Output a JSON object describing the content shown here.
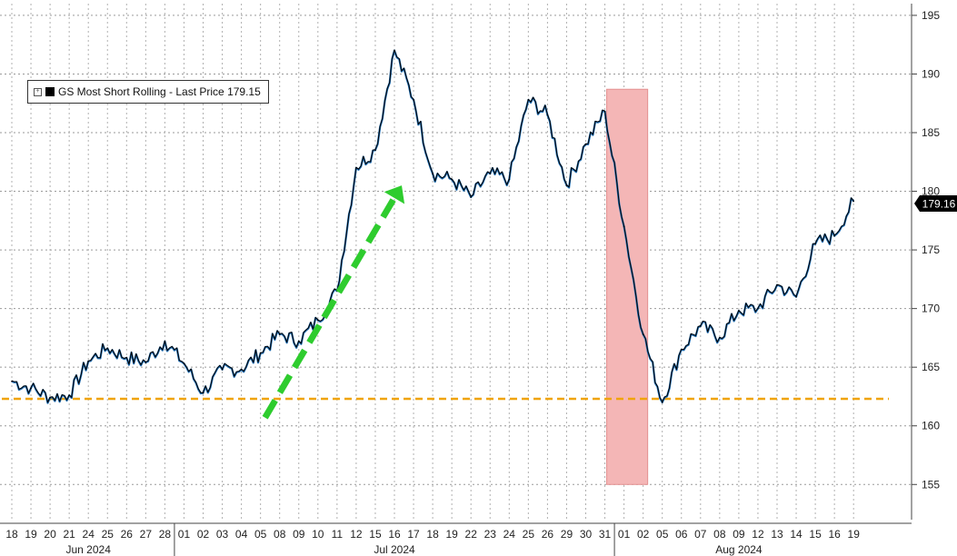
{
  "legend": {
    "series_label": "GS Most Short Rolling - Last Price 179.15"
  },
  "last_price_tag": "179.16",
  "chart_data": {
    "type": "line",
    "title": "",
    "xlabel": "",
    "ylabel": "",
    "ylim": [
      152,
      196
    ],
    "yticks": [
      155,
      160,
      165,
      170,
      175,
      180,
      185,
      190,
      195
    ],
    "grid": true,
    "legend_position": "top-left",
    "x": [
      "18",
      "19",
      "20",
      "21",
      "24",
      "25",
      "26",
      "27",
      "28",
      "01",
      "02",
      "03",
      "04",
      "05",
      "08",
      "09",
      "10",
      "11",
      "12",
      "15",
      "16",
      "17",
      "18",
      "19",
      "22",
      "23",
      "24",
      "25",
      "26",
      "29",
      "30",
      "31",
      "01",
      "02",
      "05",
      "06",
      "07",
      "08",
      "09",
      "12",
      "13",
      "14",
      "15",
      "16",
      "19"
    ],
    "months": [
      {
        "label": "Jun 2024",
        "start": 0,
        "end": 8
      },
      {
        "label": "Jul 2024",
        "start": 9,
        "end": 31
      },
      {
        "label": "Aug 2024",
        "start": 32,
        "end": 44
      }
    ],
    "series": [
      {
        "name": "GS Most Short Rolling - Last Price 179.15",
        "color": "#000000",
        "values": [
          163.8,
          163.2,
          162.4,
          162.6,
          165.5,
          166.6,
          165.8,
          165.4,
          167.2,
          165.3,
          162.8,
          164.8,
          164.8,
          166.2,
          167.8,
          167.2,
          169.0,
          171.5,
          182.0,
          183.5,
          192.0,
          187.8,
          181.5,
          181.0,
          179.5,
          181.5,
          181.0,
          187.8,
          186.5,
          180.5,
          184.0,
          186.8,
          177.0,
          167.8,
          162.0,
          166.5,
          168.5,
          167.5,
          169.8,
          170.0,
          172.0,
          171.0,
          175.5,
          176.2,
          179.15
        ]
      }
    ],
    "reference_line": {
      "value": 162.3,
      "color": "#f0a30a",
      "style": "dashed"
    },
    "highlight": {
      "x_start": "31",
      "x_end": "02",
      "y_range": [
        155,
        188.7
      ],
      "color": "#f4b6b6"
    },
    "trend_arrow": {
      "from": {
        "x": "05",
        "y": 160.7
      },
      "to": {
        "x": "16",
        "y": 180.5
      },
      "color": "#2ecc2e",
      "style": "dashed"
    }
  }
}
